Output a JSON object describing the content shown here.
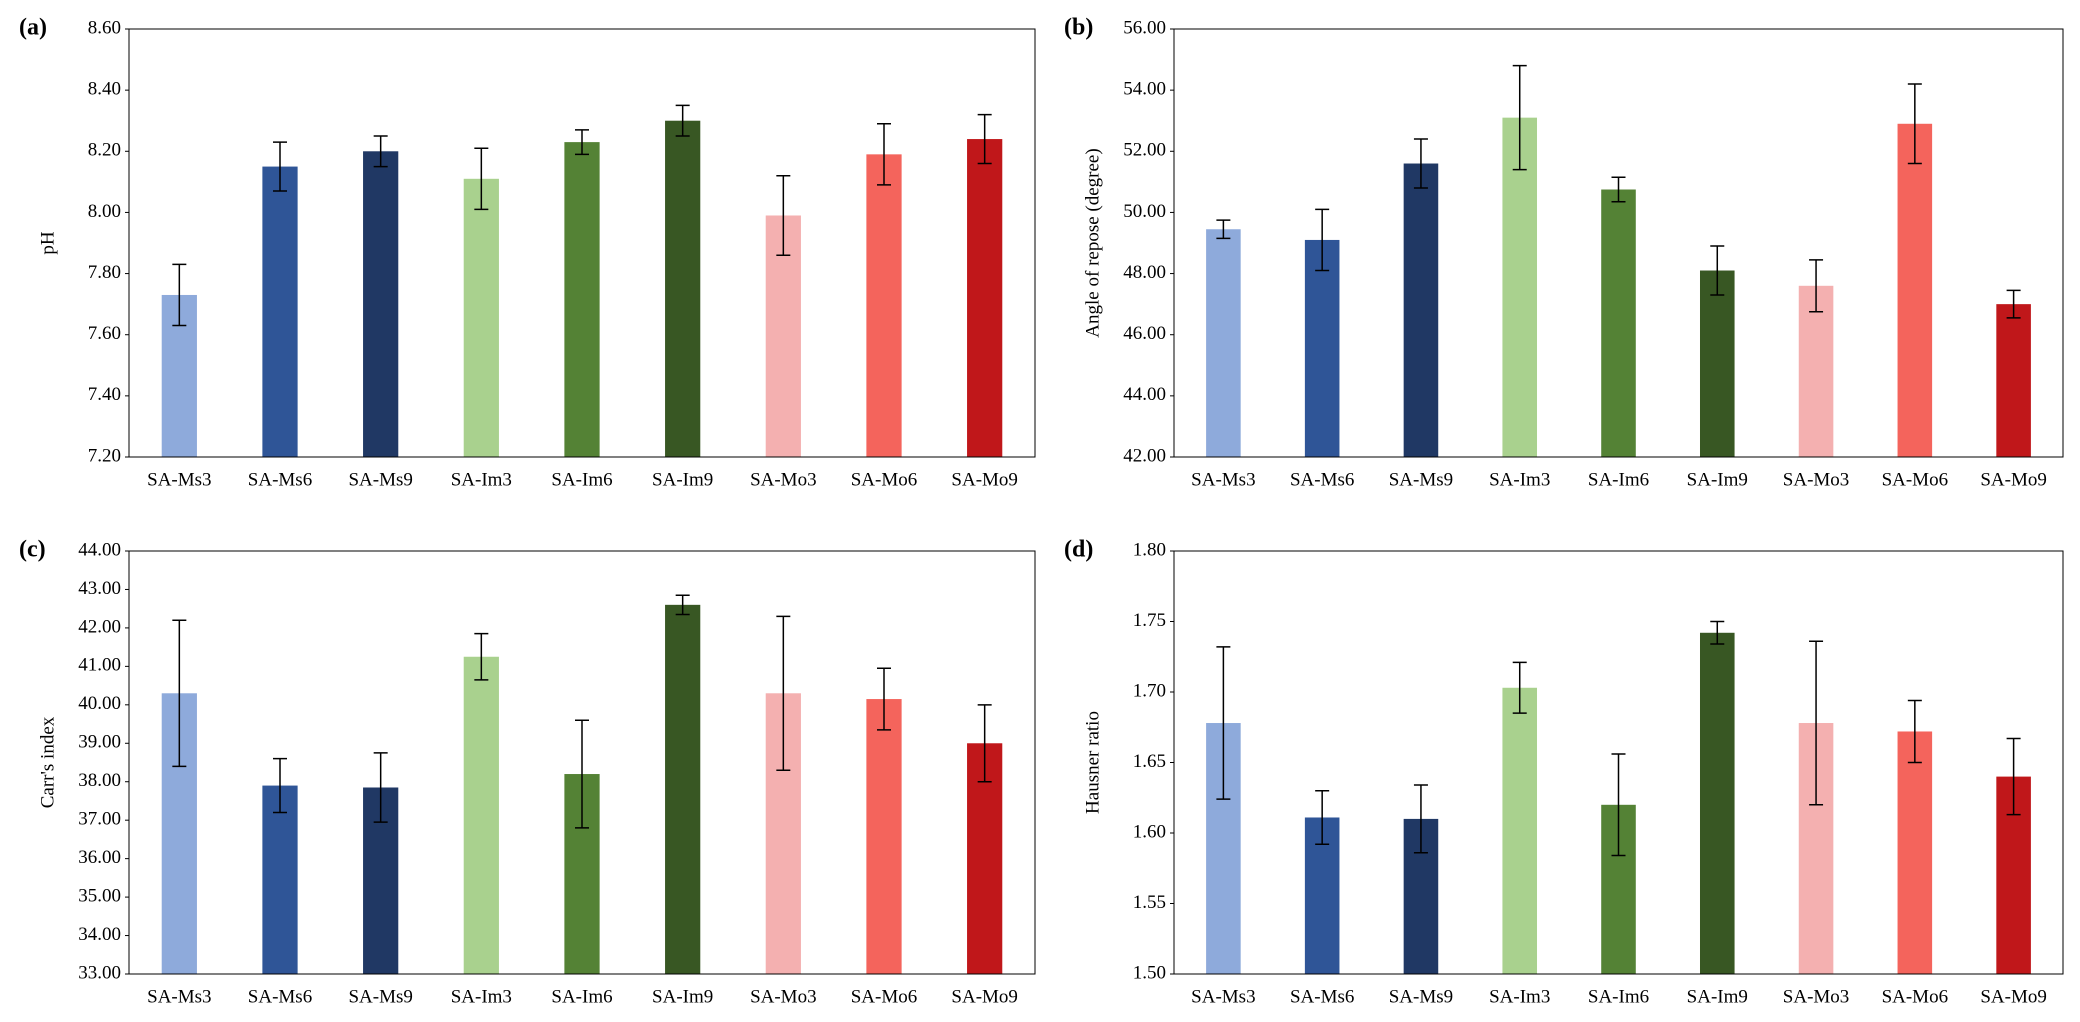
{
  "chart_data": [
    {
      "type": "bar",
      "label": "(a)",
      "ylabel": "pH",
      "categories": [
        "SA-Ms3",
        "SA-Ms6",
        "SA-Ms9",
        "SA-Im3",
        "SA-Im6",
        "SA-Im9",
        "SA-Mo3",
        "SA-Mo6",
        "SA-Mo9"
      ],
      "values": [
        7.73,
        8.15,
        8.2,
        8.11,
        8.23,
        8.3,
        7.99,
        8.19,
        8.24
      ],
      "errors": [
        0.1,
        0.08,
        0.05,
        0.1,
        0.04,
        0.05,
        0.13,
        0.1,
        0.08
      ],
      "colors": [
        "#8eaadb",
        "#2f5597",
        "#203864",
        "#a9d18e",
        "#548235",
        "#385723",
        "#f4b0b0",
        "#f4645c",
        "#c0171a"
      ],
      "ylim": [
        7.2,
        8.6
      ],
      "yticks": [
        {
          "value": 7.2,
          "label": "7.20"
        },
        {
          "value": 7.4,
          "label": "7.40"
        },
        {
          "value": 7.6,
          "label": "7.60"
        },
        {
          "value": 7.8,
          "label": "7.80"
        },
        {
          "value": 8.0,
          "label": "8.00"
        },
        {
          "value": 8.2,
          "label": "8.20"
        },
        {
          "value": 8.4,
          "label": "8.40"
        },
        {
          "value": 8.6,
          "label": "8.60"
        }
      ]
    },
    {
      "type": "bar",
      "label": "(b)",
      "ylabel": "Angle of repose (degree)",
      "categories": [
        "SA-Ms3",
        "SA-Ms6",
        "SA-Ms9",
        "SA-Im3",
        "SA-Im6",
        "SA-Im9",
        "SA-Mo3",
        "SA-Mo6",
        "SA-Mo9"
      ],
      "values": [
        49.45,
        49.1,
        51.6,
        53.1,
        50.75,
        48.1,
        47.6,
        52.9,
        47.0
      ],
      "errors": [
        0.3,
        1.0,
        0.8,
        1.7,
        0.4,
        0.8,
        0.85,
        1.3,
        0.45
      ],
      "colors": [
        "#8eaadb",
        "#2f5597",
        "#203864",
        "#a9d18e",
        "#548235",
        "#385723",
        "#f4b0b0",
        "#f4645c",
        "#c0171a"
      ],
      "ylim": [
        42,
        56
      ],
      "yticks": [
        {
          "value": 42,
          "label": "42.00"
        },
        {
          "value": 44,
          "label": "44.00"
        },
        {
          "value": 46,
          "label": "46.00"
        },
        {
          "value": 48,
          "label": "48.00"
        },
        {
          "value": 50,
          "label": "50.00"
        },
        {
          "value": 52,
          "label": "52.00"
        },
        {
          "value": 54,
          "label": "54.00"
        },
        {
          "value": 56,
          "label": "56.00"
        }
      ]
    },
    {
      "type": "bar",
      "label": "(c)",
      "ylabel": "Carr's index",
      "categories": [
        "SA-Ms3",
        "SA-Ms6",
        "SA-Ms9",
        "SA-Im3",
        "SA-Im6",
        "SA-Im9",
        "SA-Mo3",
        "SA-Mo6",
        "SA-Mo9"
      ],
      "values": [
        40.3,
        37.9,
        37.85,
        41.25,
        38.2,
        42.6,
        40.3,
        40.15,
        39.0
      ],
      "errors": [
        1.9,
        0.7,
        0.9,
        0.6,
        1.4,
        0.25,
        2.0,
        0.8,
        1.0
      ],
      "colors": [
        "#8eaadb",
        "#2f5597",
        "#203864",
        "#a9d18e",
        "#548235",
        "#385723",
        "#f4b0b0",
        "#f4645c",
        "#c0171a"
      ],
      "ylim": [
        33,
        44
      ],
      "yticks": [
        {
          "value": 33,
          "label": "33.00"
        },
        {
          "value": 34,
          "label": "34.00"
        },
        {
          "value": 35,
          "label": "35.00"
        },
        {
          "value": 36,
          "label": "36.00"
        },
        {
          "value": 37,
          "label": "37.00"
        },
        {
          "value": 38,
          "label": "38.00"
        },
        {
          "value": 39,
          "label": "39.00"
        },
        {
          "value": 40,
          "label": "40.00"
        },
        {
          "value": 41,
          "label": "41.00"
        },
        {
          "value": 42,
          "label": "42.00"
        },
        {
          "value": 43,
          "label": "43.00"
        },
        {
          "value": 44,
          "label": "44.00"
        }
      ]
    },
    {
      "type": "bar",
      "label": "(d)",
      "ylabel": "Hausner ratio",
      "categories": [
        "SA-Ms3",
        "SA-Ms6",
        "SA-Ms9",
        "SA-Im3",
        "SA-Im6",
        "SA-Im9",
        "SA-Mo3",
        "SA-Mo6",
        "SA-Mo9"
      ],
      "values": [
        1.678,
        1.611,
        1.61,
        1.703,
        1.62,
        1.742,
        1.678,
        1.672,
        1.64
      ],
      "errors": [
        0.054,
        0.019,
        0.024,
        0.018,
        0.036,
        0.008,
        0.058,
        0.022,
        0.027
      ],
      "colors": [
        "#8eaadb",
        "#2f5597",
        "#203864",
        "#a9d18e",
        "#548235",
        "#385723",
        "#f4b0b0",
        "#f4645c",
        "#c0171a"
      ],
      "ylim": [
        1.5,
        1.8
      ],
      "yticks": [
        {
          "value": 1.5,
          "label": "1.50"
        },
        {
          "value": 1.55,
          "label": "1.55"
        },
        {
          "value": 1.6,
          "label": "1.60"
        },
        {
          "value": 1.65,
          "label": "1.65"
        },
        {
          "value": 1.7,
          "label": "1.70"
        },
        {
          "value": 1.75,
          "label": "1.75"
        },
        {
          "value": 1.8,
          "label": "1.80"
        }
      ]
    }
  ]
}
